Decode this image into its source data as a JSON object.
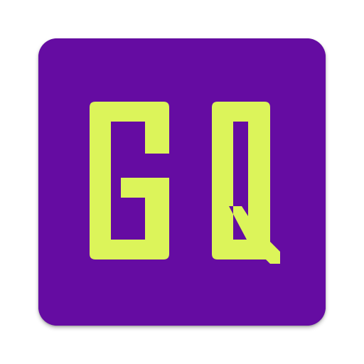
{
  "icon": {
    "logo_text": "GQ",
    "background_color": "#650ca2",
    "letter_color": "#dcf45a",
    "shape": "rounded-square"
  }
}
